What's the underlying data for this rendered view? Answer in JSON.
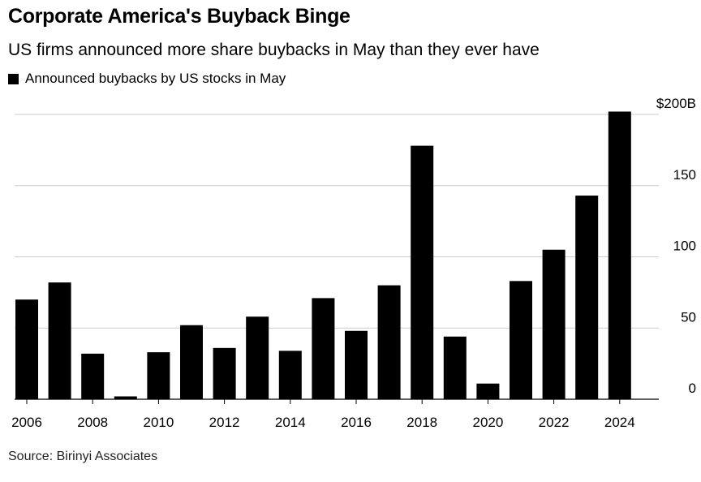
{
  "header": {
    "title": "Corporate America's Buyback Binge",
    "subtitle": "US firms announced more share buybacks in May than they ever have"
  },
  "footer": {
    "source": "Source: Birinyi Associates"
  },
  "chart_data": {
    "type": "bar",
    "title": "Corporate America's Buyback Binge",
    "subtitle": "US firms announced more share buybacks in May than they ever have",
    "series": [
      {
        "name": "Announced buybacks by US stocks in May",
        "color": "#000000",
        "values": [
          70,
          82,
          32,
          2,
          33,
          52,
          36,
          58,
          34,
          71,
          48,
          80,
          178,
          44,
          11,
          83,
          105,
          143,
          202
        ]
      }
    ],
    "categories": [
      "2006",
      "2007",
      "2008",
      "2009",
      "2010",
      "2011",
      "2012",
      "2013",
      "2014",
      "2015",
      "2016",
      "2017",
      "2018",
      "2019",
      "2020",
      "2021",
      "2022",
      "2023",
      "2024"
    ],
    "x_tick_labels": [
      "2006",
      "2008",
      "2010",
      "2012",
      "2014",
      "2016",
      "2018",
      "2020",
      "2022",
      "2024"
    ],
    "y_tick_labels": [
      "0",
      "50",
      "100",
      "150",
      "$200B"
    ],
    "y_ticks": [
      0,
      50,
      100,
      150,
      200
    ],
    "ylim": [
      0,
      200
    ],
    "xlabel": "",
    "ylabel": "",
    "grid": true,
    "y_axis_position": "right",
    "legend_position": "top-left"
  }
}
